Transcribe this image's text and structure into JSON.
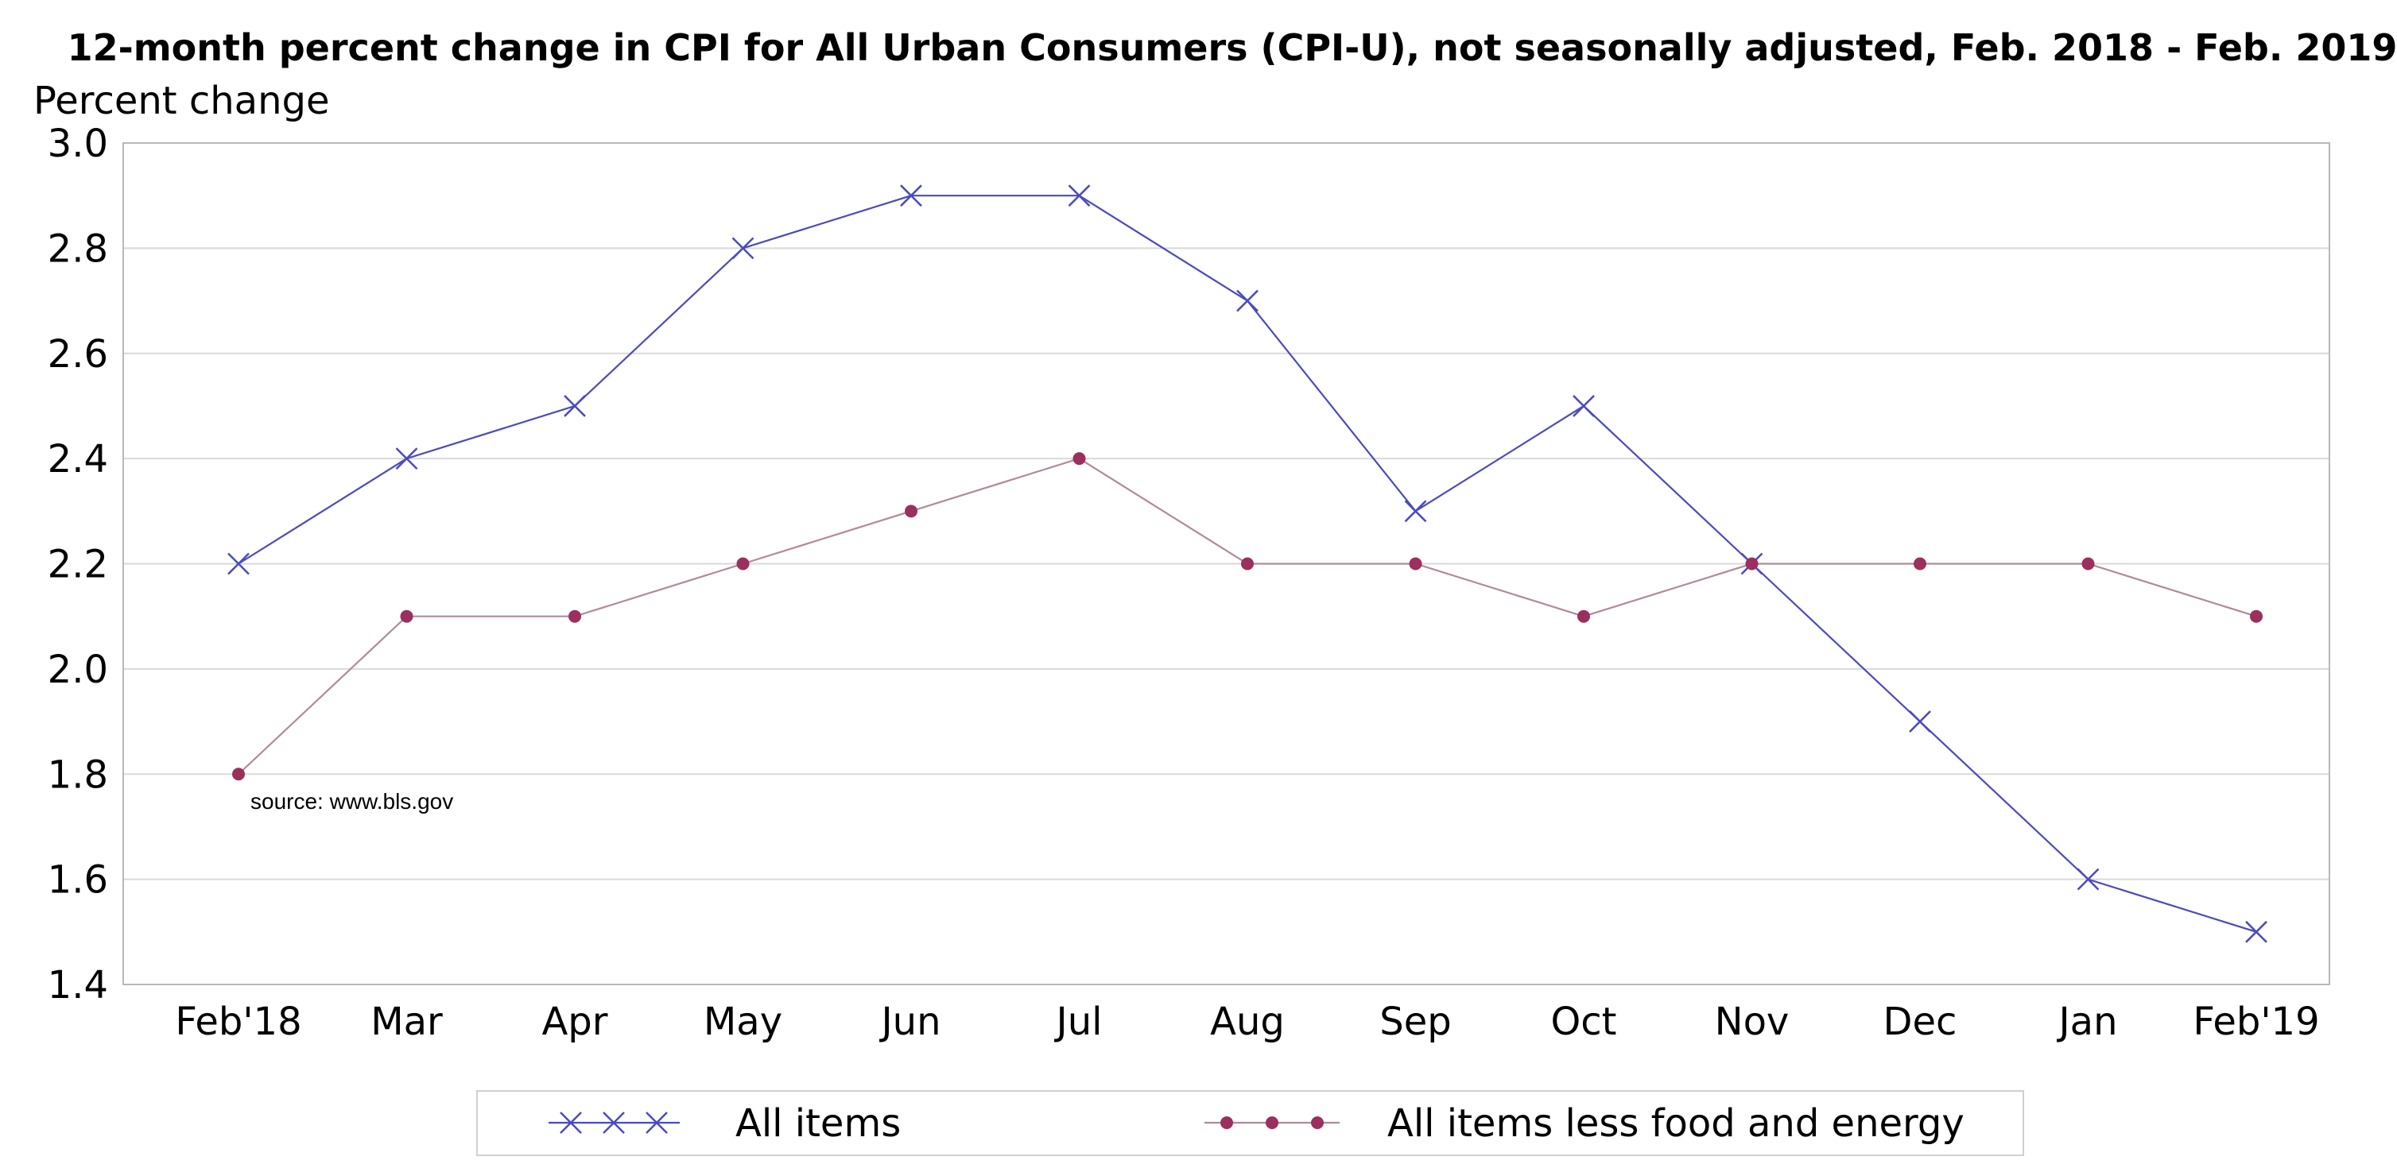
{
  "chart_data": {
    "type": "line",
    "title": "12-month percent change in CPI for All Urban Consumers (CPI-U), not seasonally adjusted, Feb. 2018 - Feb. 2019",
    "ylabel": "Percent change",
    "xlabel": "",
    "categories": [
      "Feb'18",
      "Mar",
      "Apr",
      "May",
      "Jun",
      "Jul",
      "Aug",
      "Sep",
      "Oct",
      "Nov",
      "Dec",
      "Jan",
      "Feb'19"
    ],
    "ylim": [
      1.4,
      3.0
    ],
    "yticks": [
      "1.4",
      "1.6",
      "1.8",
      "2.0",
      "2.2",
      "2.4",
      "2.6",
      "2.8",
      "3.0"
    ],
    "grid": true,
    "legend_position": "bottom",
    "annotation": "source: www.bls.gov",
    "series": [
      {
        "name": "All items",
        "marker": "x",
        "color": "#4a4ac0",
        "values": [
          2.2,
          2.4,
          2.5,
          2.8,
          2.9,
          2.9,
          2.7,
          2.3,
          2.5,
          2.2,
          1.9,
          1.6,
          1.5
        ]
      },
      {
        "name": "All items less food and energy",
        "marker": "dot",
        "color": "#9b2f5e",
        "line_color": "#b08a9c",
        "values": [
          1.8,
          2.1,
          2.1,
          2.2,
          2.3,
          2.4,
          2.2,
          2.2,
          2.1,
          2.2,
          2.2,
          2.2,
          2.1
        ]
      }
    ]
  }
}
